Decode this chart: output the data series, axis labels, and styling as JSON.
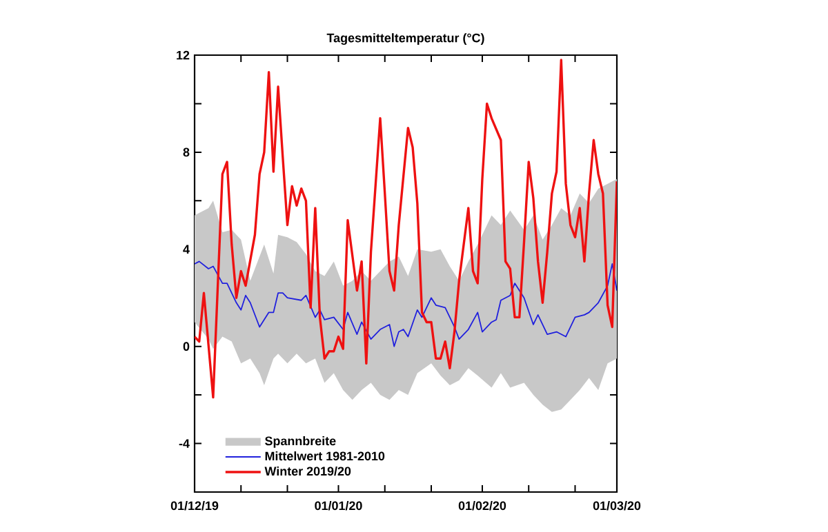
{
  "chart_data": {
    "type": "line",
    "title": "Tagesmitteltemperatur (°C)",
    "xlim": [
      "2019-12-01",
      "2020-03-01"
    ],
    "xticks": [
      {
        "value": "2019-12-01",
        "label": "01/12/19"
      },
      {
        "value": "2019-12-11",
        "label": null
      },
      {
        "value": "2019-12-21",
        "label": null
      },
      {
        "value": "2020-01-01",
        "label": "01/01/20"
      },
      {
        "value": "2020-01-11",
        "label": null
      },
      {
        "value": "2020-01-21",
        "label": null
      },
      {
        "value": "2020-02-01",
        "label": "01/02/20"
      },
      {
        "value": "2020-02-11",
        "label": null
      },
      {
        "value": "2020-02-21",
        "label": null
      },
      {
        "value": "2020-03-01",
        "label": "01/03/20"
      }
    ],
    "ylim": [
      -6,
      12
    ],
    "yticks": [
      {
        "value": -6,
        "label": null
      },
      -4,
      {
        "value": -2,
        "label": null
      },
      0,
      {
        "value": 2,
        "label": null
      },
      4,
      {
        "value": 6,
        "label": null
      },
      8,
      {
        "value": 10,
        "label": null
      },
      12
    ],
    "legend": "bottom left",
    "series": [
      {
        "name": "Spannbreite",
        "type": "area",
        "color": "#c8c8c8",
        "x": [
          "2019-12-01",
          "2019-12-04",
          "2019-12-05",
          "2019-12-07",
          "2019-12-09",
          "2019-12-11",
          "2019-12-13",
          "2019-12-15",
          "2019-12-16",
          "2019-12-18",
          "2019-12-19",
          "2019-12-21",
          "2019-12-23",
          "2019-12-25",
          "2019-12-27",
          "2019-12-29",
          "2019-12-31",
          "2020-01-02",
          "2020-01-04",
          "2020-01-06",
          "2020-01-08",
          "2020-01-10",
          "2020-01-12",
          "2020-01-14",
          "2020-01-16",
          "2020-01-18",
          "2020-01-21",
          "2020-01-23",
          "2020-01-25",
          "2020-01-27",
          "2020-01-29",
          "2020-01-31",
          "2020-02-03",
          "2020-02-05",
          "2020-02-07",
          "2020-02-10",
          "2020-02-12",
          "2020-02-14",
          "2020-02-16",
          "2020-02-18",
          "2020-02-20",
          "2020-02-22",
          "2020-02-24",
          "2020-02-26",
          "2020-02-28",
          "2020-03-01"
        ],
        "values": [
          null,
          null,
          null,
          null,
          null,
          null,
          null,
          null,
          null,
          null,
          null,
          null,
          null,
          null,
          null,
          null,
          null,
          null,
          null,
          null,
          null,
          null,
          null,
          null,
          null,
          null,
          null,
          null,
          null,
          null,
          null,
          null,
          null,
          null,
          null,
          null,
          null,
          null,
          null,
          null,
          null,
          null,
          null,
          null,
          null,
          null
        ],
        "upper": [
          5.4,
          5.7,
          6.0,
          4.7,
          4.8,
          4.4,
          2.7,
          3.7,
          4.2,
          3.0,
          4.6,
          4.5,
          4.3,
          3.8,
          3.1,
          2.9,
          3.5,
          2.5,
          2.7,
          3.1,
          2.7,
          3.1,
          3.5,
          3.7,
          2.9,
          4.0,
          3.9,
          4.0,
          3.3,
          2.7,
          3.5,
          4.2,
          5.4,
          5.0,
          5.6,
          4.8,
          5.4,
          4.4,
          5.0,
          5.7,
          5.4,
          6.3,
          5.9,
          6.5,
          6.7,
          6.9
        ],
        "lower": [
          1.0,
          0.3,
          -0.1,
          0.4,
          0.2,
          -0.7,
          -0.5,
          -1.1,
          -1.6,
          -0.5,
          -0.3,
          -0.7,
          -0.3,
          -0.7,
          -0.5,
          -1.5,
          -1.1,
          -1.8,
          -2.2,
          -1.8,
          -1.5,
          -2.0,
          -2.2,
          -1.8,
          -2.0,
          -1.1,
          -0.7,
          -1.2,
          -1.6,
          -1.4,
          -0.9,
          -1.2,
          -1.7,
          -1.1,
          -1.7,
          -1.5,
          -2.0,
          -2.4,
          -2.7,
          -2.6,
          -2.2,
          -1.8,
          -1.3,
          -1.8,
          -0.7,
          -0.5
        ]
      },
      {
        "name": "Mittelwert 1981-2010",
        "color": "#2020dd",
        "x": [
          "2019-12-01",
          "2019-12-02",
          "2019-12-04",
          "2019-12-05",
          "2019-12-07",
          "2019-12-08",
          "2019-12-10",
          "2019-12-11",
          "2019-12-12",
          "2019-12-13",
          "2019-12-15",
          "2019-12-17",
          "2019-12-18",
          "2019-12-19",
          "2019-12-20",
          "2019-12-21",
          "2019-12-24",
          "2019-12-25",
          "2019-12-27",
          "2019-12-28",
          "2019-12-29",
          "2019-12-31",
          "2020-01-02",
          "2020-01-03",
          "2020-01-05",
          "2020-01-06",
          "2020-01-08",
          "2020-01-10",
          "2020-01-12",
          "2020-01-13",
          "2020-01-14",
          "2020-01-15",
          "2020-01-16",
          "2020-01-18",
          "2020-01-19",
          "2020-01-21",
          "2020-01-22",
          "2020-01-24",
          "2020-01-26",
          "2020-01-27",
          "2020-01-29",
          "2020-01-31",
          "2020-02-01",
          "2020-02-03",
          "2020-02-04",
          "2020-02-05",
          "2020-02-07",
          "2020-02-08",
          "2020-02-10",
          "2020-02-12",
          "2020-02-13",
          "2020-02-15",
          "2020-02-17",
          "2020-02-19",
          "2020-02-21",
          "2020-02-23",
          "2020-02-24",
          "2020-02-26",
          "2020-02-28",
          "2020-02-29",
          "2020-03-01"
        ],
        "values": [
          3.4,
          3.5,
          3.2,
          3.3,
          2.6,
          2.6,
          1.8,
          1.5,
          2.1,
          1.8,
          0.8,
          1.4,
          1.4,
          2.2,
          2.2,
          2.0,
          1.9,
          2.1,
          1.2,
          1.5,
          1.1,
          1.2,
          0.7,
          1.4,
          0.5,
          1.0,
          0.3,
          0.7,
          0.9,
          0.0,
          0.6,
          0.7,
          0.4,
          1.5,
          1.2,
          2.0,
          1.7,
          1.6,
          0.8,
          0.3,
          0.7,
          1.4,
          0.6,
          1.0,
          1.1,
          1.9,
          2.1,
          2.6,
          2.0,
          0.9,
          1.3,
          0.5,
          0.6,
          0.4,
          1.2,
          1.3,
          1.4,
          1.8,
          2.5,
          3.4,
          2.3
        ]
      },
      {
        "name": "Winter 2019/20",
        "color": "#ee1111",
        "x": [
          "2019-12-01",
          "2019-12-02",
          "2019-12-03",
          "2019-12-05",
          "2019-12-07",
          "2019-12-08",
          "2019-12-09",
          "2019-12-10",
          "2019-12-11",
          "2019-12-12",
          "2019-12-14",
          "2019-12-15",
          "2019-12-16",
          "2019-12-17",
          "2019-12-18",
          "2019-12-19",
          "2019-12-20",
          "2019-12-21",
          "2019-12-22",
          "2019-12-23",
          "2019-12-24",
          "2019-12-25",
          "2019-12-26",
          "2019-12-27",
          "2019-12-28",
          "2019-12-29",
          "2019-12-30",
          "2019-12-31",
          "2020-01-01",
          "2020-01-02",
          "2020-01-03",
          "2020-01-05",
          "2020-01-06",
          "2020-01-07",
          "2020-01-08",
          "2020-01-10",
          "2020-01-11",
          "2020-01-12",
          "2020-01-13",
          "2020-01-14",
          "2020-01-16",
          "2020-01-17",
          "2020-01-18",
          "2020-01-19",
          "2020-01-20",
          "2020-01-21",
          "2020-01-22",
          "2020-01-23",
          "2020-01-24",
          "2020-01-25",
          "2020-01-26",
          "2020-01-27",
          "2020-01-29",
          "2020-01-30",
          "2020-01-31",
          "2020-02-01",
          "2020-02-02",
          "2020-02-03",
          "2020-02-05",
          "2020-02-06",
          "2020-02-07",
          "2020-02-08",
          "2020-02-09",
          "2020-02-10",
          "2020-02-11",
          "2020-02-12",
          "2020-02-13",
          "2020-02-14",
          "2020-02-15",
          "2020-02-16",
          "2020-02-17",
          "2020-02-18",
          "2020-02-19",
          "2020-02-20",
          "2020-02-21",
          "2020-02-22",
          "2020-02-23",
          "2020-02-24",
          "2020-02-25",
          "2020-02-26",
          "2020-02-27",
          "2020-02-28",
          "2020-02-29",
          "2020-03-01"
        ],
        "values": [
          0.4,
          0.2,
          2.2,
          -2.1,
          7.1,
          7.6,
          4.2,
          2.0,
          3.1,
          2.5,
          4.6,
          7.1,
          8.0,
          11.3,
          7.2,
          10.7,
          7.8,
          5.0,
          6.6,
          5.8,
          6.5,
          6.0,
          1.6,
          5.7,
          1.2,
          -0.5,
          -0.2,
          -0.2,
          0.4,
          -0.1,
          5.2,
          2.3,
          3.5,
          -0.7,
          3.9,
          9.4,
          6.3,
          3.1,
          2.3,
          5.0,
          9.0,
          8.2,
          5.9,
          1.4,
          1.0,
          1.0,
          -0.5,
          -0.5,
          0.2,
          -0.9,
          0.6,
          2.7,
          5.7,
          3.1,
          2.6,
          6.9,
          10.0,
          9.4,
          8.5,
          3.5,
          3.2,
          1.2,
          1.2,
          4.3,
          7.6,
          6.1,
          3.5,
          1.8,
          3.9,
          6.3,
          7.2,
          11.8,
          6.7,
          5.0,
          4.5,
          5.7,
          3.5,
          6.3,
          8.5,
          7.1,
          6.3,
          1.7,
          0.8,
          6.8
        ]
      }
    ]
  }
}
